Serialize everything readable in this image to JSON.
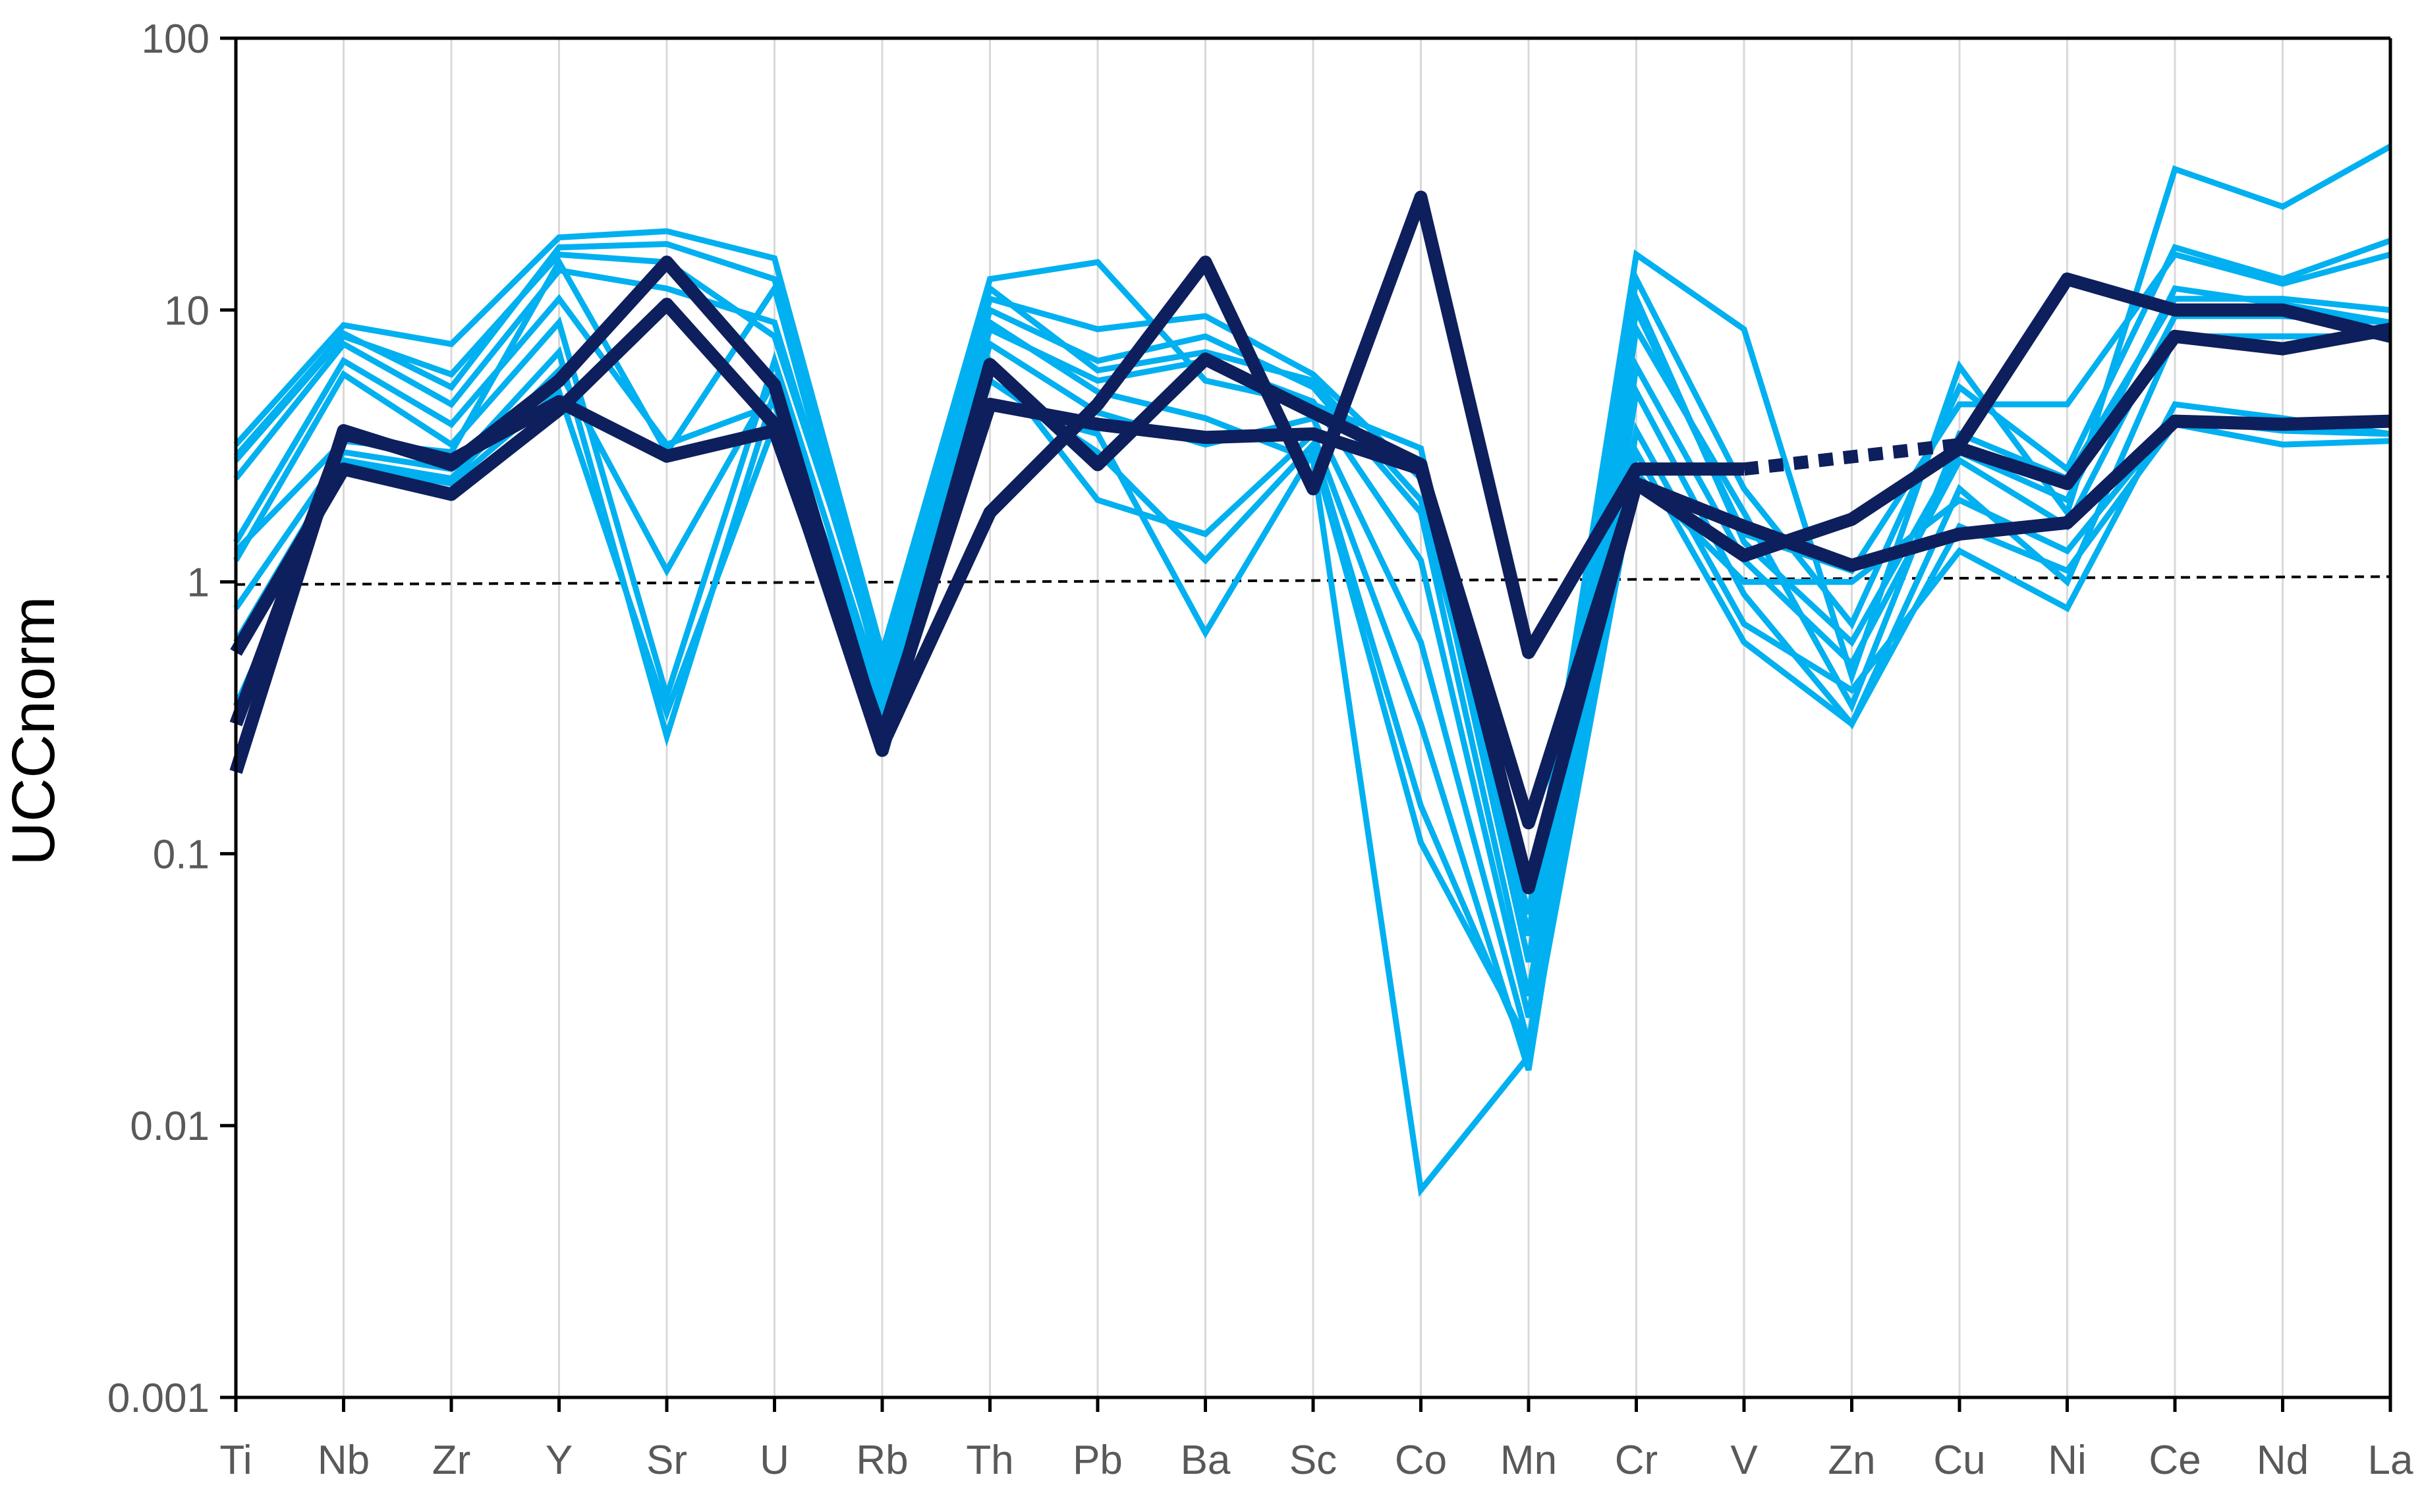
{
  "chart_data": {
    "type": "line",
    "title": "",
    "xlabel": "",
    "ylabel": "UCCnorm",
    "yscale": "log",
    "ylim": [
      0.001,
      100
    ],
    "yticks": [
      100,
      10,
      1,
      0.1,
      0.01,
      0.001
    ],
    "ytick_labels": [
      "100",
      "10",
      "1",
      "0.1",
      "0.01",
      "0.001"
    ],
    "categories": [
      "Ti",
      "Nb",
      "Zr",
      "Y",
      "Sr",
      "U",
      "Rb",
      "Th",
      "Pb",
      "Ba",
      "Sc",
      "Co",
      "Mn",
      "Cr",
      "V",
      "Zn",
      "Cu",
      "Ni",
      "Ce",
      "Nd",
      "La"
    ],
    "grid": "vertical",
    "reference_line": {
      "value": 1,
      "style": "dashed",
      "color": "#000000"
    },
    "colors": {
      "light_series": "#00b0f0",
      "dark_series": "#0d1f5c",
      "grid": "#d9d9d9",
      "axis": "#000000"
    },
    "light_series": [
      {
        "name": "light-1",
        "values": [
          3.2,
          8.8,
          7.5,
          18.5,
          19.5,
          15.5,
          0.55,
          13,
          15,
          5.5,
          4.5,
          3.1,
          0.05,
          16,
          8.5,
          0.45,
          6.2,
          1.8,
          33,
          24,
          40
        ]
      },
      {
        "name": "light-2",
        "values": [
          2.9,
          8.2,
          5.2,
          17,
          17.5,
          13,
          0.5,
          11,
          8.5,
          9.5,
          5.8,
          2.4,
          0.04,
          13,
          2.2,
          0.7,
          5.2,
          2.6,
          17,
          13,
          18
        ]
      },
      {
        "name": "light-3",
        "values": [
          2.4,
          7.5,
          4.5,
          14,
          12,
          9,
          0.45,
          10,
          6.5,
          8,
          5.2,
          1.8,
          0.03,
          10,
          1.5,
          1.1,
          4.5,
          4.5,
          16,
          12.5,
          16
        ]
      },
      {
        "name": "light-4",
        "values": [
          1.4,
          6.5,
          3.8,
          11,
          3.2,
          4.5,
          0.4,
          8.5,
          5.5,
          6.5,
          4.6,
          1.2,
          0.025,
          8.5,
          1.8,
          0.35,
          3.5,
          2.4,
          11,
          11,
          10
        ]
      },
      {
        "name": "light-5",
        "values": [
          1.2,
          5.8,
          3.2,
          9,
          0.38,
          6.5,
          0.38,
          7.5,
          4.2,
          3.2,
          4.0,
          0.6,
          0.02,
          6.2,
          1.2,
          0.5,
          2.8,
          1.6,
          9.5,
          9.5,
          9
        ]
      },
      {
        "name": "light-6",
        "values": [
          0.8,
          3.0,
          2.6,
          7,
          0.27,
          5,
          0.34,
          6.5,
          2.0,
          1.5,
          3.5,
          0.3,
          0.016,
          5.0,
          0.9,
          0.3,
          2.2,
          1.0,
          8,
          8,
          8
        ]
      },
      {
        "name": "light-7",
        "values": [
          0.6,
          2.8,
          2.4,
          6,
          1.1,
          5.5,
          0.3,
          5.5,
          3.0,
          1.2,
          3.2,
          0.15,
          0.018,
          3.6,
          0.7,
          0.4,
          1.3,
          0.8,
          4.5,
          4.0,
          3.5
        ]
      },
      {
        "name": "light-8",
        "values": [
          0.35,
          2.7,
          2.3,
          5,
          0.33,
          3.8,
          0.28,
          4.5,
          3.5,
          0.65,
          3.0,
          0.11,
          0.02,
          3.0,
          0.6,
          0.3,
          1.6,
          1.1,
          3.8,
          3.2,
          3.3
        ]
      },
      {
        "name": "light-9",
        "values": [
          1.3,
          3.3,
          3.0,
          15,
          3.0,
          12,
          0.42,
          9,
          5.0,
          4.0,
          2.8,
          0.0058,
          0.018,
          2.5,
          1.0,
          1.0,
          2.0,
          1.3,
          4.0,
          3.6,
          3.5
        ]
      },
      {
        "name": "light-10",
        "values": [
          2.8,
          8.0,
          5.8,
          16,
          15,
          8,
          0.5,
          12,
          6.0,
          7.0,
          5.5,
          2.0,
          0.06,
          11,
          1.4,
          0.6,
          3.0,
          2.0,
          12,
          10.5,
          9
        ]
      }
    ],
    "dark_series": [
      {
        "name": "dark-1",
        "values": [
          0.2,
          3.6,
          2.7,
          5.5,
          15,
          5.3,
          0.25,
          1.8,
          4.5,
          15,
          2.2,
          26,
          0.55,
          2.6,
          2.6,
          1.7,
          3.2,
          13,
          10,
          10,
          8
        ],
        "gap_after_index": 14,
        "gap_style": "dotted"
      },
      {
        "name": "dark-2",
        "values": [
          0.3,
          3.5,
          2.8,
          4.6,
          2.9,
          3.6,
          0.27,
          4.5,
          3.8,
          3.4,
          3.5,
          2.6,
          0.13,
          2.3,
          1.6,
          1.15,
          1.5,
          1.65,
          3.9,
          3.8,
          3.9
        ]
      },
      {
        "name": "dark-3",
        "values": [
          0.55,
          2.6,
          2.1,
          4.3,
          10.5,
          3.8,
          0.24,
          6.3,
          2.7,
          6.6,
          4.2,
          2.7,
          0.075,
          2.3,
          1.25,
          1.7,
          3.1,
          2.3,
          8,
          7.2,
          8.5
        ]
      }
    ]
  }
}
